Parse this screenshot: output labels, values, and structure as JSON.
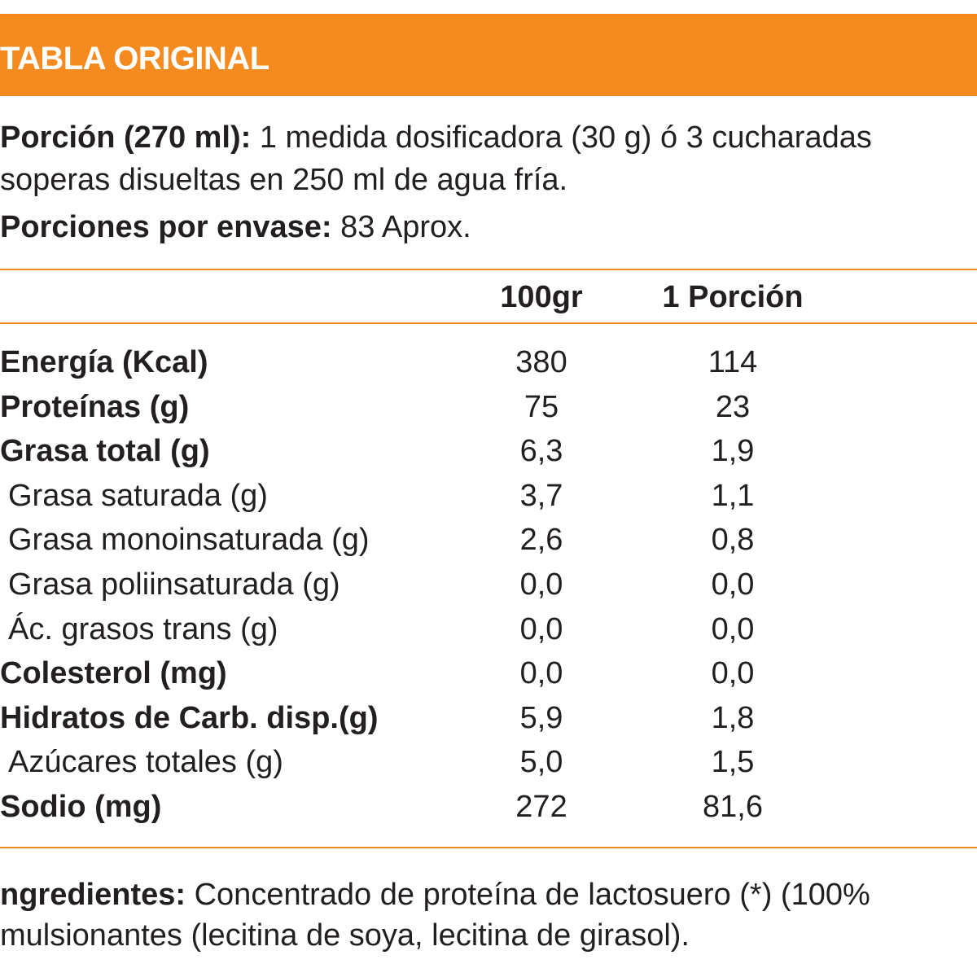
{
  "header": {
    "title": "TABLA ORIGINAL",
    "accent_color": "#f58a1f"
  },
  "portion": {
    "portion_label": "Porción (270 ml):",
    "portion_text_line1": " 1 medida dosificadora (30 g) ó 3 cucharadas",
    "portion_text_line2": "soperas disueltas en 250 ml de agua fría.",
    "servings_label": "Porciones por envase:",
    "servings_value": " 83 Aprox."
  },
  "table": {
    "col_100g": "100gr",
    "col_portion": "1 Porción",
    "rows": [
      {
        "label": "Energía (Kcal)",
        "v100": "380",
        "vportion": "114"
      },
      {
        "label": "Proteínas (g)",
        "v100": "75",
        "vportion": "23"
      },
      {
        "label": "Grasa total (g)",
        "v100": "6,3",
        "vportion": "1,9"
      },
      {
        "label": "Grasa saturada (g)",
        "v100": "3,7",
        "vportion": "1,1"
      },
      {
        "label": "Grasa monoinsaturada (g)",
        "v100": "2,6",
        "vportion": "0,8"
      },
      {
        "label": "Grasa poliinsaturada (g)",
        "v100": "0,0",
        "vportion": "0,0"
      },
      {
        "label": "Ác. grasos trans (g)",
        "v100": "0,0",
        "vportion": "0,0"
      },
      {
        "label": "Colesterol (mg)",
        "v100": "0,0",
        "vportion": "0,0"
      },
      {
        "label": "Hidratos de Carb. disp.(g)",
        "v100": "5,9",
        "vportion": "1,8"
      },
      {
        "label": "Azúcares totales (g)",
        "v100": "5,0",
        "vportion": "1,5"
      },
      {
        "label": "Sodio (mg)",
        "v100": "272",
        "vportion": "81,6"
      }
    ]
  },
  "ingredients": {
    "label": "ngredientes:",
    "text_line1": " Concentrado de proteína de lactosuero (*) (100%",
    "text_line2": "mulsionantes (lecitina de soya, lecitina de girasol)."
  }
}
